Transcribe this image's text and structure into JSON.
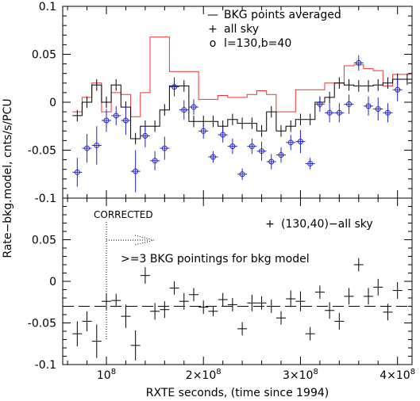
{
  "chart_data": [
    {
      "type": "line",
      "panel": "top",
      "ylim": [
        -0.1,
        0.1
      ],
      "xlim": [
        55000000.0,
        415000000.0
      ],
      "yticks": [
        {
          "value": 0.1,
          "label": "0.1"
        },
        {
          "value": 0.05,
          "label": "0.05"
        },
        {
          "value": 0,
          "label": "0"
        },
        {
          "value": -0.05,
          "label": "-0.05"
        },
        {
          "value": -0.1,
          "label": "-0.1"
        }
      ],
      "legend": {
        "placement": "top-right",
        "entries": [
          {
            "symbol": "—",
            "label": "BKG points averaged"
          },
          {
            "symbol": "+",
            "label": "all sky"
          },
          {
            "symbol": "o",
            "label": "l=130,b=40"
          }
        ]
      },
      "series": [
        {
          "name": "BKG points averaged",
          "style": "step",
          "color": "#ee3333",
          "x": [
            70000000.0,
            80000000.0,
            90000000.0,
            100000000.0,
            110000000.0,
            120000000.0,
            130000000.0,
            140000000.0,
            150000000.0,
            160000000.0,
            170000000.0,
            180000000.0,
            190000000.0,
            200000000.0,
            210000000.0,
            220000000.0,
            230000000.0,
            240000000.0,
            250000000.0,
            260000000.0,
            270000000.0,
            280000000.0,
            290000000.0,
            300000000.0,
            310000000.0,
            320000000.0,
            330000000.0,
            340000000.0,
            350000000.0,
            360000000.0,
            370000000.0,
            380000000.0,
            390000000.0,
            400000000.0,
            410000000.0
          ],
          "y": [
            -0.01,
            0.005,
            0.02,
            -0.01,
            0.01,
            0.008,
            -0.015,
            0.01,
            0.068,
            0.068,
            0.032,
            0.032,
            0.032,
            0.003,
            0.003,
            0.007,
            0.005,
            0.005,
            0.008,
            0.012,
            0.008,
            -0.01,
            -0.01,
            0.013,
            0.013,
            0.013,
            0.02,
            0.02,
            0.038,
            0.039,
            0.035,
            0.033,
            0.017,
            0.029,
            0.029
          ]
        },
        {
          "name": "all sky",
          "style": "step",
          "color": "#000000",
          "x": [
            70000000.0,
            80000000.0,
            90000000.0,
            100000000.0,
            110000000.0,
            120000000.0,
            130000000.0,
            140000000.0,
            150000000.0,
            160000000.0,
            170000000.0,
            180000000.0,
            190000000.0,
            200000000.0,
            210000000.0,
            220000000.0,
            230000000.0,
            240000000.0,
            250000000.0,
            260000000.0,
            270000000.0,
            280000000.0,
            290000000.0,
            300000000.0,
            310000000.0,
            320000000.0,
            330000000.0,
            340000000.0,
            350000000.0,
            360000000.0,
            370000000.0,
            380000000.0,
            390000000.0,
            400000000.0,
            410000000.0
          ],
          "y": [
            -0.014,
            0.0,
            0.018,
            0.0,
            0.018,
            -0.005,
            -0.038,
            -0.025,
            -0.025,
            -0.008,
            0.017,
            0.017,
            -0.02,
            -0.02,
            -0.02,
            -0.025,
            -0.018,
            -0.022,
            -0.022,
            -0.03,
            -0.01,
            -0.03,
            -0.025,
            -0.018,
            -0.018,
            0.0,
            0.005,
            0.02,
            0.018,
            0.017,
            0.017,
            0.018,
            0.02,
            0.024,
            0.024
          ],
          "yerr": [
            0.006,
            0.006,
            0.006,
            0.006,
            0.006,
            0.006,
            0.006,
            0.006,
            0.006,
            0.006,
            0.006,
            0.006,
            0.006,
            0.006,
            0.006,
            0.006,
            0.006,
            0.006,
            0.006,
            0.006,
            0.006,
            0.006,
            0.006,
            0.006,
            0.006,
            0.006,
            0.006,
            0.006,
            0.006,
            0.006,
            0.006,
            0.006,
            0.006,
            0.006,
            0.006
          ]
        },
        {
          "name": "l=130,b=40",
          "style": "points",
          "color": "#2222cc",
          "x": [
            70000000.0,
            80000000.0,
            90000000.0,
            100000000.0,
            110000000.0,
            120000000.0,
            130000000.0,
            140000000.0,
            150000000.0,
            160000000.0,
            170000000.0,
            180000000.0,
            190000000.0,
            200000000.0,
            210000000.0,
            220000000.0,
            230000000.0,
            240000000.0,
            250000000.0,
            260000000.0,
            270000000.0,
            280000000.0,
            290000000.0,
            300000000.0,
            310000000.0,
            320000000.0,
            330000000.0,
            340000000.0,
            350000000.0,
            360000000.0,
            370000000.0,
            380000000.0,
            390000000.0,
            400000000.0
          ],
          "y": [
            -0.073,
            -0.048,
            -0.045,
            -0.019,
            -0.014,
            -0.019,
            -0.072,
            -0.035,
            -0.061,
            -0.048,
            0.016,
            -0.008,
            -0.005,
            -0.03,
            -0.057,
            -0.034,
            -0.046,
            -0.075,
            -0.046,
            -0.051,
            -0.062,
            -0.055,
            -0.042,
            -0.041,
            -0.064,
            -0.002,
            -0.011,
            -0.011,
            -0.002,
            0.041,
            -0.004,
            -0.007,
            -0.011,
            0.013
          ],
          "yerr": [
            0.015,
            0.015,
            0.02,
            0.012,
            0.01,
            0.015,
            0.022,
            0.012,
            0.01,
            0.012,
            0.01,
            0.01,
            0.008,
            0.008,
            0.006,
            0.008,
            0.008,
            0.006,
            0.008,
            0.01,
            0.008,
            0.008,
            0.008,
            0.012,
            0.006,
            0.008,
            0.01,
            0.01,
            0.01,
            0.008,
            0.01,
            0.012,
            0.01,
            0.012
          ]
        }
      ]
    },
    {
      "type": "scatter",
      "panel": "bottom",
      "ylim": [
        -0.1,
        0.1
      ],
      "xlim": [
        55000000.0,
        415000000.0
      ],
      "xlabel": "RXTE seconds, (time since 1994)",
      "xticks": [
        {
          "value": 100000000.0,
          "label": "10",
          "exp": "8"
        },
        {
          "value": 200000000.0,
          "label": "2×10",
          "exp": "8"
        },
        {
          "value": 300000000.0,
          "label": "3×10",
          "exp": "8"
        },
        {
          "value": 400000000.0,
          "label": "4×10",
          "exp": "8"
        }
      ],
      "yticks": [
        {
          "value": 0.05,
          "label": "0.05"
        },
        {
          "value": 0,
          "label": "0"
        },
        {
          "value": -0.05,
          "label": "-0.05"
        },
        {
          "value": -0.1,
          "label": "-0.1"
        }
      ],
      "legend": {
        "placement": "top-right",
        "entries": [
          {
            "symbol": "+",
            "label": "(130,40)−all sky"
          }
        ]
      },
      "reference_line": {
        "y": -0.03,
        "style": "dashed"
      },
      "annotations": {
        "corrected_label": "CORRECTED",
        "corrected_x": 100000000.0,
        "pointings_label": ">=3 BKG pointings for bkg model"
      },
      "series": [
        {
          "name": "(130,40)−all sky",
          "color": "#000000",
          "x": [
            70000000.0,
            80000000.0,
            90000000.0,
            100000000.0,
            110000000.0,
            120000000.0,
            130000000.0,
            140000000.0,
            150000000.0,
            160000000.0,
            170000000.0,
            180000000.0,
            190000000.0,
            200000000.0,
            210000000.0,
            220000000.0,
            230000000.0,
            240000000.0,
            250000000.0,
            260000000.0,
            270000000.0,
            280000000.0,
            290000000.0,
            300000000.0,
            310000000.0,
            320000000.0,
            330000000.0,
            340000000.0,
            350000000.0,
            360000000.0,
            370000000.0,
            380000000.0,
            390000000.0,
            400000000.0
          ],
          "y": [
            -0.063,
            -0.048,
            -0.072,
            -0.024,
            -0.023,
            -0.042,
            -0.077,
            0.007,
            -0.036,
            -0.034,
            -0.008,
            -0.024,
            -0.016,
            -0.031,
            -0.036,
            -0.022,
            -0.028,
            -0.057,
            -0.026,
            -0.026,
            -0.03,
            -0.044,
            -0.021,
            -0.024,
            -0.063,
            -0.013,
            -0.035,
            -0.048,
            -0.018,
            0.02,
            -0.018,
            -0.007,
            -0.037,
            -0.011
          ],
          "yerr": [
            0.015,
            0.012,
            0.02,
            0.01,
            0.008,
            0.014,
            0.018,
            0.01,
            0.01,
            0.01,
            0.008,
            0.01,
            0.008,
            0.008,
            0.006,
            0.008,
            0.008,
            0.008,
            0.01,
            0.008,
            0.008,
            0.008,
            0.01,
            0.012,
            0.008,
            0.008,
            0.01,
            0.01,
            0.01,
            0.008,
            0.01,
            0.01,
            0.01,
            0.01
          ]
        }
      ]
    }
  ],
  "ylabel": "Rate−bkg.model, cnts/s/PCU"
}
